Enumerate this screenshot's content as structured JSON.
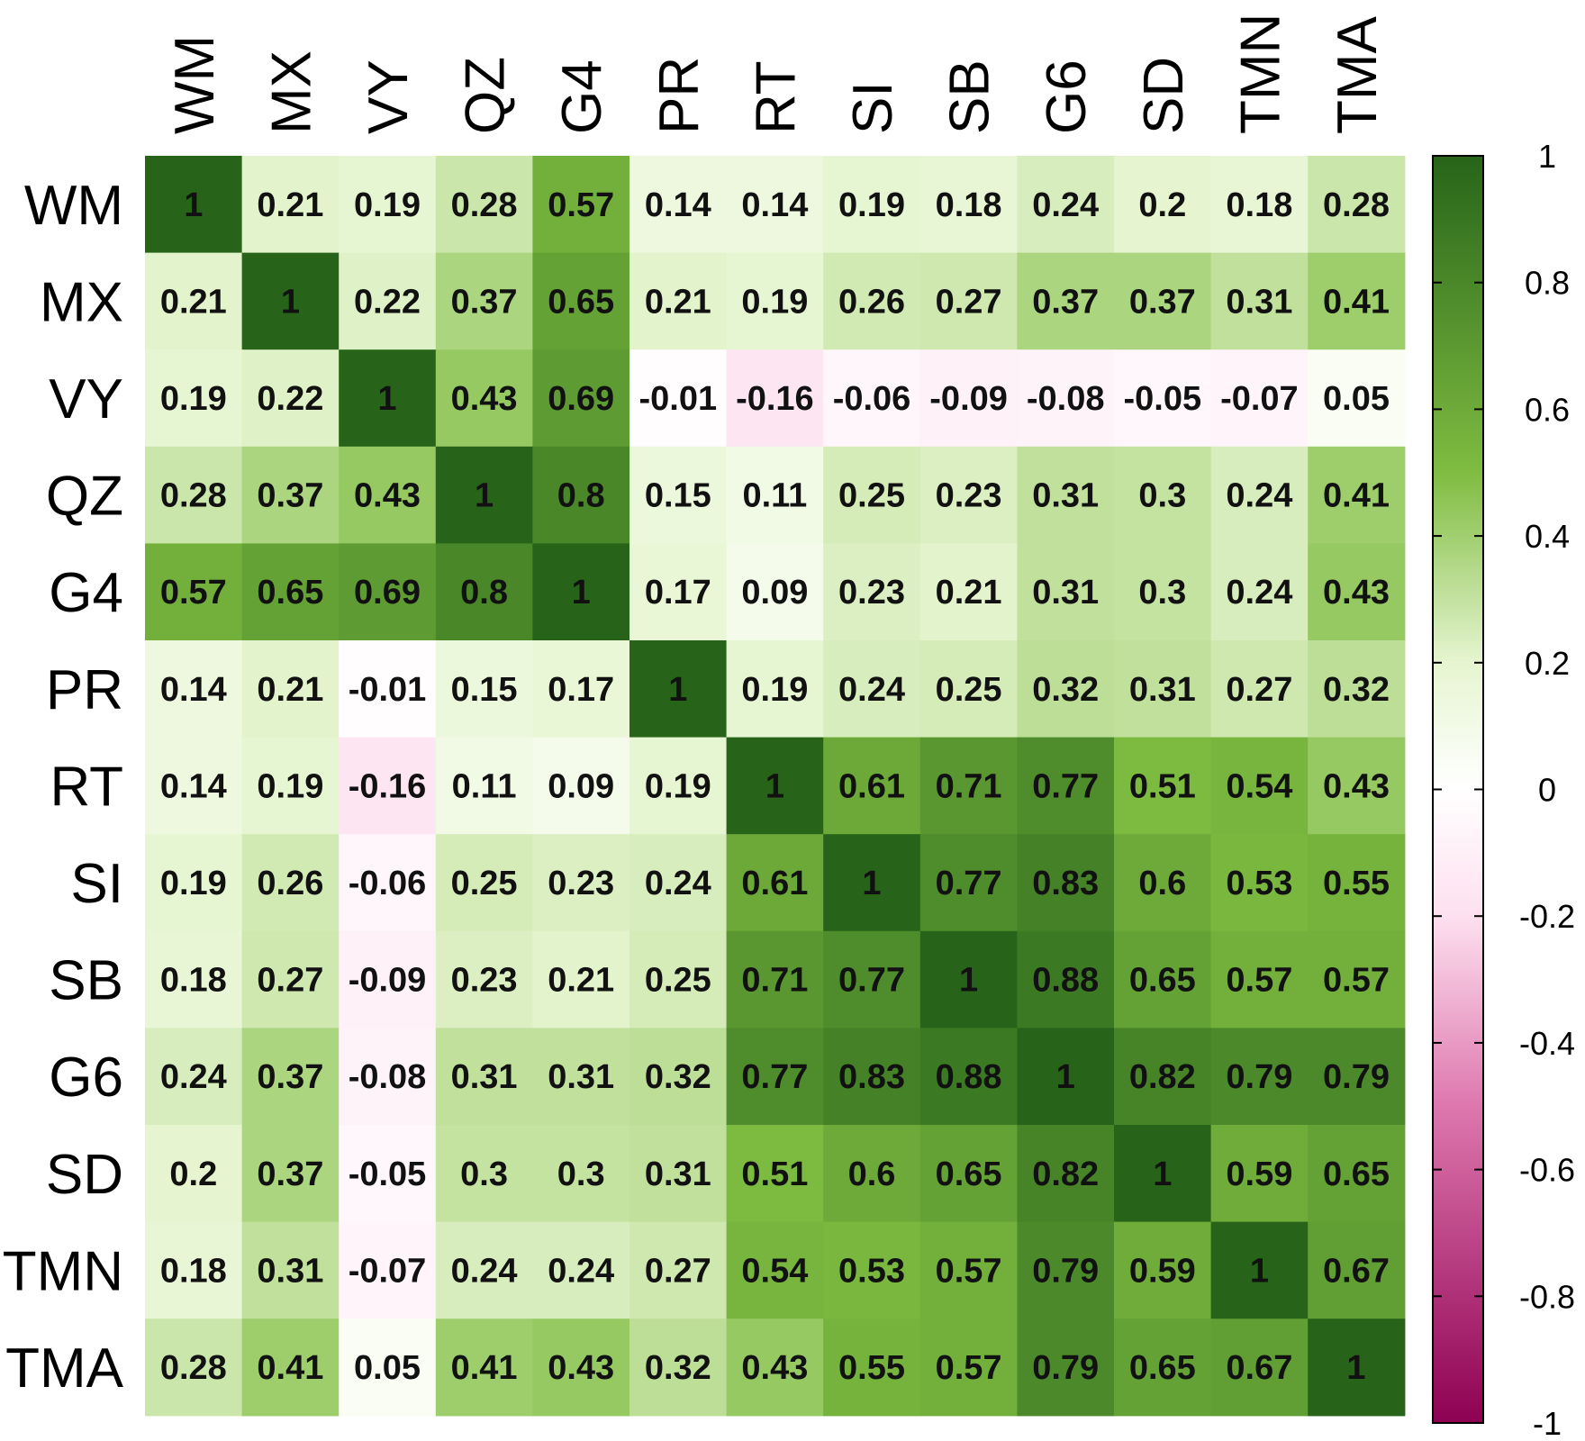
{
  "chart_data": {
    "type": "heatmap",
    "title": "",
    "variables": [
      "WM",
      "MX",
      "VY",
      "QZ",
      "G4",
      "PR",
      "RT",
      "SI",
      "SB",
      "G6",
      "SD",
      "TMN",
      "TMA"
    ],
    "matrix": [
      [
        1,
        0.21,
        0.19,
        0.28,
        0.57,
        0.14,
        0.14,
        0.19,
        0.18,
        0.24,
        0.2,
        0.18,
        0.28
      ],
      [
        0.21,
        1,
        0.22,
        0.37,
        0.65,
        0.21,
        0.19,
        0.26,
        0.27,
        0.37,
        0.37,
        0.31,
        0.41
      ],
      [
        0.19,
        0.22,
        1,
        0.43,
        0.69,
        -0.01,
        -0.16,
        -0.06,
        -0.09,
        -0.08,
        -0.05,
        -0.07,
        0.05
      ],
      [
        0.28,
        0.37,
        0.43,
        1,
        0.8,
        0.15,
        0.11,
        0.25,
        0.23,
        0.31,
        0.3,
        0.24,
        0.41
      ],
      [
        0.57,
        0.65,
        0.69,
        0.8,
        1,
        0.17,
        0.09,
        0.23,
        0.21,
        0.31,
        0.3,
        0.24,
        0.43
      ],
      [
        0.14,
        0.21,
        -0.01,
        0.15,
        0.17,
        1,
        0.19,
        0.24,
        0.25,
        0.32,
        0.31,
        0.27,
        0.32
      ],
      [
        0.14,
        0.19,
        -0.16,
        0.11,
        0.09,
        0.19,
        1,
        0.61,
        0.71,
        0.77,
        0.51,
        0.54,
        0.43
      ],
      [
        0.19,
        0.26,
        -0.06,
        0.25,
        0.23,
        0.24,
        0.61,
        1,
        0.77,
        0.83,
        0.6,
        0.53,
        0.55
      ],
      [
        0.18,
        0.27,
        -0.09,
        0.23,
        0.21,
        0.25,
        0.71,
        0.77,
        1,
        0.88,
        0.65,
        0.57,
        0.57
      ],
      [
        0.24,
        0.37,
        -0.08,
        0.31,
        0.31,
        0.32,
        0.77,
        0.83,
        0.88,
        1,
        0.82,
        0.79,
        0.79
      ],
      [
        0.2,
        0.37,
        -0.05,
        0.3,
        0.3,
        0.31,
        0.51,
        0.6,
        0.65,
        0.82,
        1,
        0.59,
        0.65
      ],
      [
        0.18,
        0.31,
        -0.07,
        0.24,
        0.24,
        0.27,
        0.54,
        0.53,
        0.57,
        0.79,
        0.59,
        1,
        0.67
      ],
      [
        0.28,
        0.41,
        0.05,
        0.41,
        0.43,
        0.32,
        0.43,
        0.55,
        0.57,
        0.79,
        0.65,
        0.67,
        1
      ]
    ],
    "value_range": [
      -1,
      1
    ],
    "colorbar": {
      "ticks": [
        1,
        0.8,
        0.6,
        0.4,
        0.2,
        0,
        -0.2,
        -0.4,
        -0.6,
        -0.8,
        -1
      ],
      "tick_labels": [
        "1",
        "0.8",
        "0.6",
        "0.4",
        "0.2",
        "0",
        "-0.2",
        "-0.4",
        "-0.6",
        "-0.8",
        "-1"
      ],
      "placement": "right"
    },
    "colors": {
      "low": "#8e0152",
      "mid_low": "#f1b6da",
      "mid": "#ffffff",
      "mid_high": "#b8e186",
      "high": "#276419"
    },
    "cell_labels": true,
    "grid": false,
    "x_labels_rotated": true
  }
}
